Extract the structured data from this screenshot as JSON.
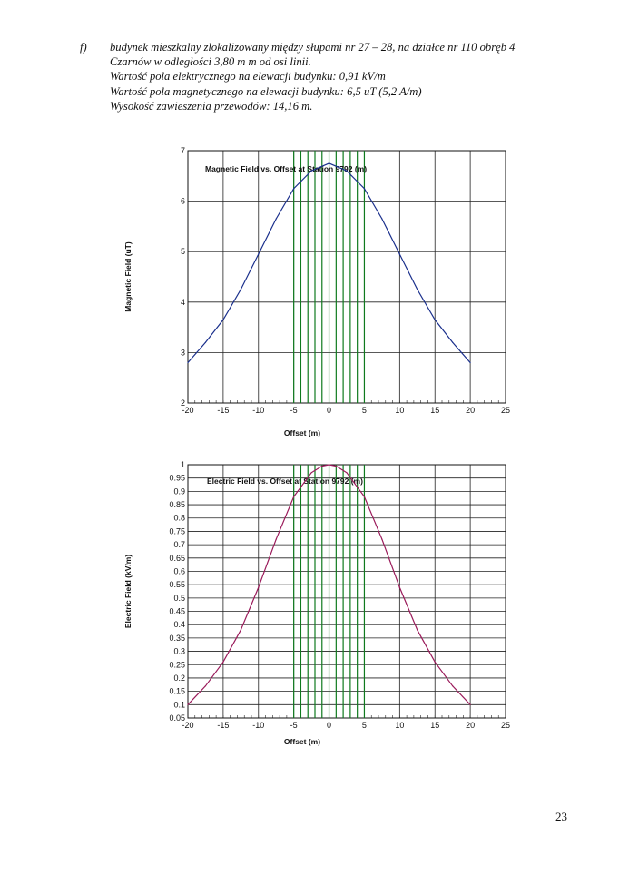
{
  "text": {
    "marker": "f)",
    "lines": [
      "budynek mieszkalny zlokalizowany między słupami nr 27 – 28, na działce nr 110 obręb 4",
      "Czarnów w odległości 3,80 m m od osi linii.",
      "Wartość pola elektrycznego na elewacji budynku: 0,91 kV/m",
      "Wartość pola magnetycznego na elewacji budynku: 6,5 uT (5,2 A/m)",
      "Wysokość zawieszenia przewodów: 14,16 m."
    ]
  },
  "page_number": "23",
  "chart_data": [
    {
      "type": "line",
      "title": "Magnetic Field vs. Offset at Station 9792 (m)",
      "xlabel": "Offset (m)",
      "ylabel": "Magnetic Field (uT)",
      "xlim": [
        -20,
        25
      ],
      "ylim": [
        2,
        7
      ],
      "xticks": [
        -20,
        -15,
        -10,
        -5,
        0,
        5,
        10,
        15,
        20,
        25
      ],
      "yticks": [
        2,
        3,
        4,
        5,
        6,
        7
      ],
      "ytick_labels": [
        "2",
        "3",
        "4",
        "5",
        "6",
        "7"
      ],
      "grid": true,
      "series_color": "#1a2f8c",
      "x": [
        -20,
        -17.5,
        -15,
        -12.5,
        -10,
        -7.5,
        -5,
        -2.5,
        0,
        2.5,
        5,
        7.5,
        10,
        12.5,
        15,
        17.5,
        20
      ],
      "y": [
        2.8,
        3.2,
        3.65,
        4.25,
        4.95,
        5.65,
        6.25,
        6.6,
        6.75,
        6.6,
        6.25,
        5.65,
        4.95,
        4.25,
        3.65,
        3.2,
        2.8
      ],
      "conductor_lines_x": [
        -5,
        -4,
        -3,
        -2,
        -1,
        0,
        1,
        2,
        3,
        4,
        5
      ],
      "conductor_color": "#0f7a1e"
    },
    {
      "type": "line",
      "title": "Electric Field vs. Offset at Station 9792 (m)",
      "xlabel": "Offset (m)",
      "ylabel": "Electric Field (kV/m)",
      "xlim": [
        -20,
        25
      ],
      "ylim": [
        0.05,
        1
      ],
      "xticks": [
        -20,
        -15,
        -10,
        -5,
        0,
        5,
        10,
        15,
        20,
        25
      ],
      "yticks": [
        0.05,
        0.1,
        0.15,
        0.2,
        0.25,
        0.3,
        0.35,
        0.4,
        0.45,
        0.5,
        0.55,
        0.6,
        0.65,
        0.7,
        0.75,
        0.8,
        0.85,
        0.9,
        0.95,
        1
      ],
      "ytick_labels": [
        "0.05",
        "0.1",
        "0.15",
        "0.2",
        "0.25",
        "0.3",
        "0.35",
        "0.4",
        "0.45",
        "0.5",
        "0.55",
        "0.6",
        "0.65",
        "0.7",
        "0.75",
        "0.8",
        "0.85",
        "0.9",
        "0.95",
        "1"
      ],
      "grid": true,
      "series_color": "#9a1a5a",
      "x": [
        -20,
        -17.5,
        -15,
        -12.5,
        -10,
        -7.5,
        -5,
        -2.5,
        -1,
        0,
        1,
        2.5,
        5,
        7.5,
        10,
        12.5,
        15,
        17.5,
        20
      ],
      "y": [
        0.1,
        0.17,
        0.26,
        0.38,
        0.54,
        0.72,
        0.88,
        0.97,
        0.995,
        1.0,
        0.995,
        0.97,
        0.88,
        0.72,
        0.54,
        0.38,
        0.26,
        0.17,
        0.1
      ],
      "conductor_lines_x": [
        -5,
        -4,
        -3,
        -2,
        -1,
        0,
        1,
        2,
        3,
        4,
        5
      ],
      "conductor_color": "#0f7a1e"
    }
  ]
}
